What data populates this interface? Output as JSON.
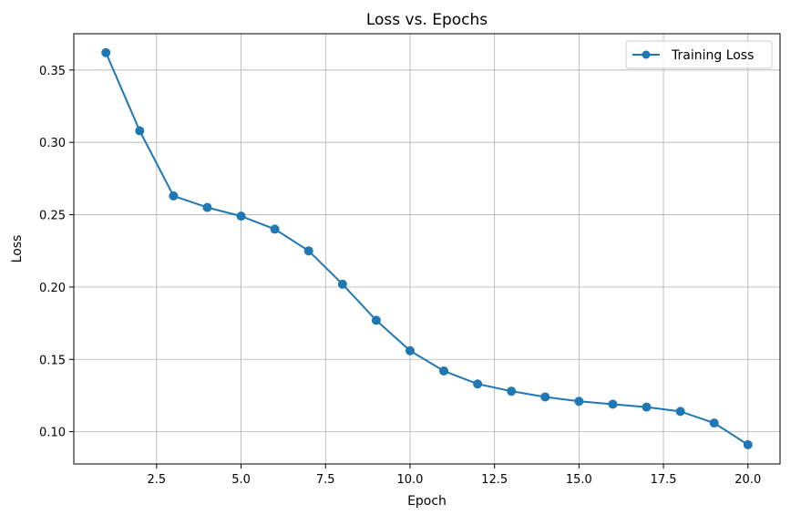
{
  "chart_data": {
    "type": "line",
    "title": "Loss vs. Epochs",
    "xlabel": "Epoch",
    "ylabel": "Loss",
    "xlim": [
      0.05,
      20.95
    ],
    "ylim": [
      0.0777,
      0.3751
    ],
    "xticks": [
      2.5,
      5.0,
      7.5,
      10.0,
      12.5,
      15.0,
      17.5,
      20.0
    ],
    "xtick_labels": [
      "2.5",
      "5.0",
      "7.5",
      "10.0",
      "12.5",
      "15.0",
      "17.5",
      "20.0"
    ],
    "yticks": [
      0.1,
      0.15,
      0.2,
      0.25,
      0.3,
      0.35
    ],
    "ytick_labels": [
      "0.10",
      "0.15",
      "0.20",
      "0.25",
      "0.30",
      "0.35"
    ],
    "grid": true,
    "legend_position": "top-right",
    "series": [
      {
        "name": "Training Loss",
        "color": "#1f77b4",
        "marker": "circle",
        "x": [
          1,
          2,
          3,
          4,
          5,
          6,
          7,
          8,
          9,
          10,
          11,
          12,
          13,
          14,
          15,
          16,
          17,
          18,
          19,
          20
        ],
        "y": [
          0.362,
          0.308,
          0.263,
          0.255,
          0.249,
          0.24,
          0.225,
          0.202,
          0.177,
          0.156,
          0.142,
          0.133,
          0.128,
          0.124,
          0.121,
          0.119,
          0.117,
          0.114,
          0.106,
          0.091
        ]
      }
    ]
  }
}
